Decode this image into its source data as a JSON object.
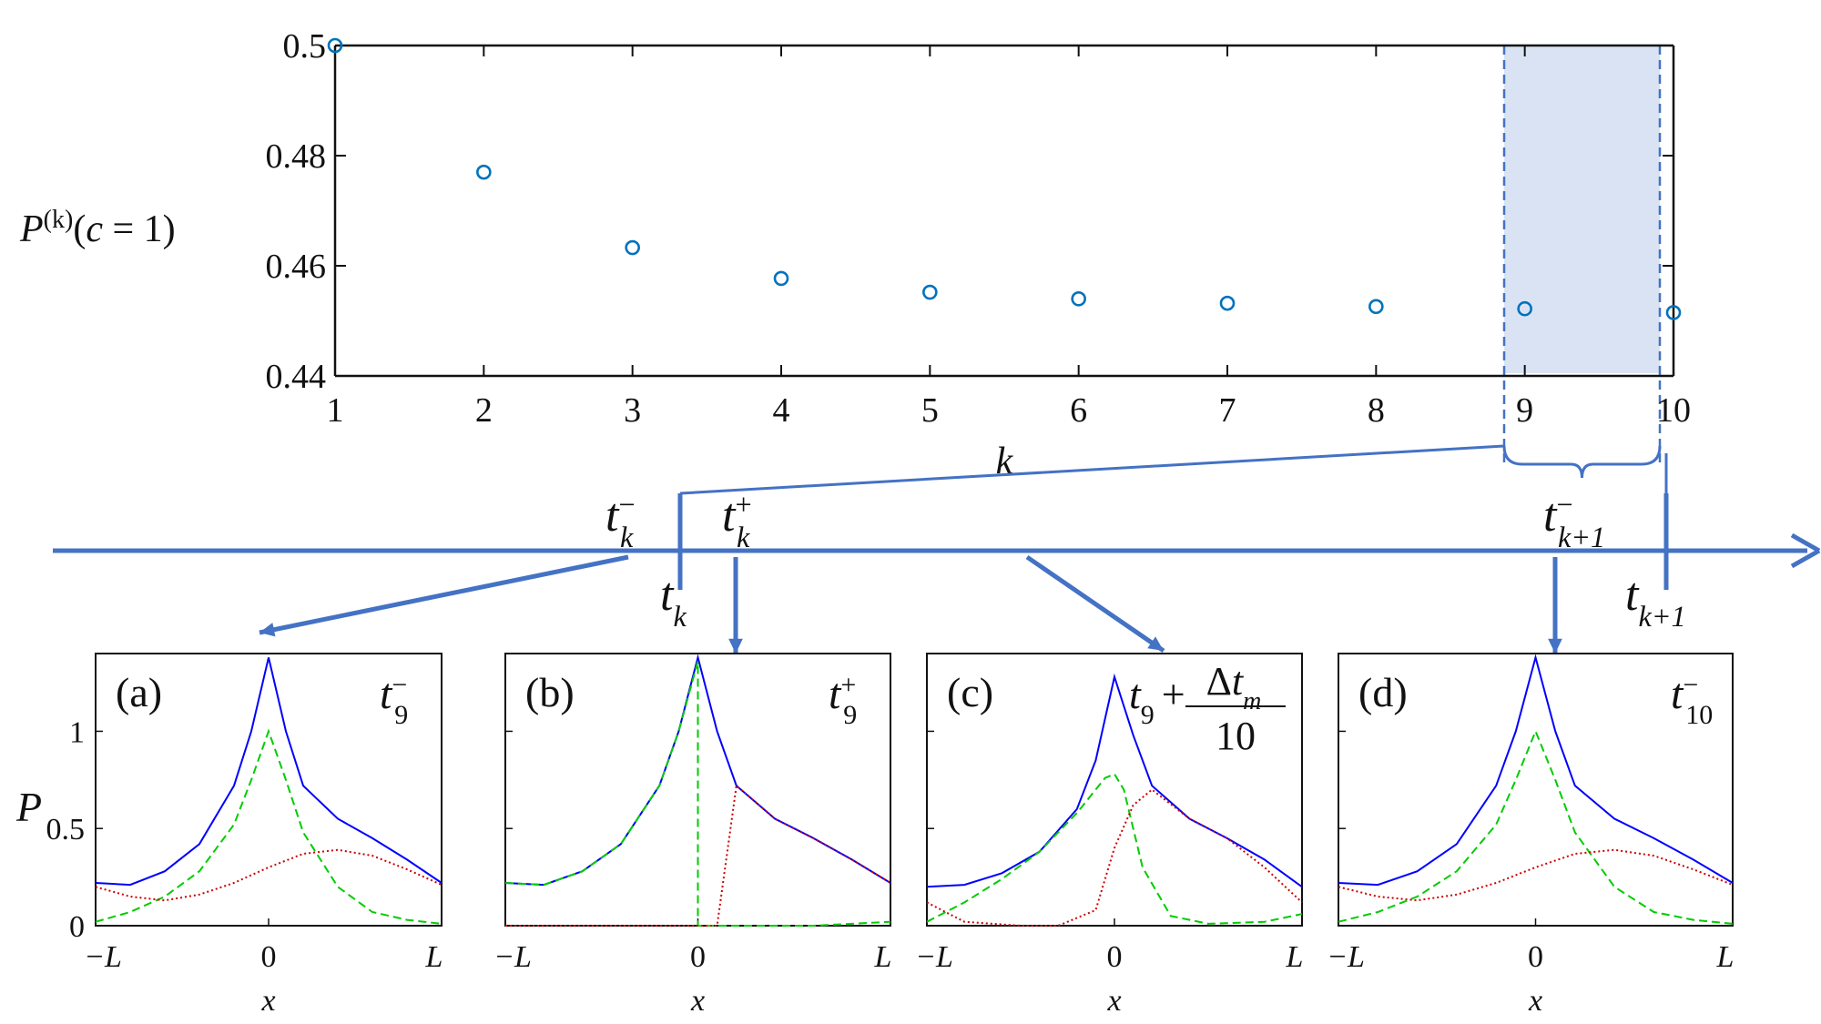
{
  "chart_data": [
    {
      "type": "scatter",
      "panel": "main",
      "xlabel": "k",
      "ylabel": "P(k)(c = 1)",
      "xlim": [
        1,
        10
      ],
      "ylim": [
        0.44,
        0.5
      ],
      "xticks": [
        "1",
        "2",
        "3",
        "4",
        "5",
        "6",
        "7",
        "8",
        "9",
        "10"
      ],
      "yticks": [
        "0.44",
        "0.46",
        "0.48",
        "0.5"
      ],
      "x": [
        1,
        2,
        3,
        4,
        5,
        6,
        7,
        8,
        9,
        10
      ],
      "y": [
        0.5,
        0.477,
        0.4633,
        0.4577,
        0.4552,
        0.454,
        0.4532,
        0.4526,
        0.4522,
        0.4515
      ],
      "marker_color": "#0072bd",
      "highlight_range": [
        9,
        10
      ],
      "highlight_color": "#dae3f3"
    },
    {
      "type": "timeline",
      "panel": "timeline",
      "labels": {
        "tk_minus": "t",
        "tk_minus_sub": "k",
        "tk_minus_sup": "−",
        "tk_plus": "t",
        "tk_plus_sub": "k",
        "tk_plus_sup": "+",
        "tk1_minus": "t",
        "tk1_minus_sub": "k+1",
        "tk1_minus_sup": "−",
        "tk": "t",
        "tk_sub": "k",
        "tk1": "t",
        "tk1_sub": "k+1"
      },
      "color": "#4472c4"
    },
    {
      "type": "line",
      "panel": "(a)",
      "time_label": "t",
      "time_sub": "9",
      "time_sup": "−",
      "ylabel": "P",
      "xlabel": "x",
      "xticks": [
        "−L",
        "0",
        "L"
      ],
      "yticks": [
        "0",
        "0.5",
        "1"
      ],
      "ylim": [
        0,
        1.4
      ],
      "series": [
        {
          "style": "solid",
          "color": "#0000ff",
          "x": [
            -1,
            -0.8,
            -0.6,
            -0.4,
            -0.2,
            -0.1,
            0,
            0.1,
            0.2,
            0.4,
            0.6,
            0.8,
            1
          ],
          "y": [
            0.22,
            0.21,
            0.28,
            0.42,
            0.72,
            1.0,
            1.38,
            1.0,
            0.72,
            0.55,
            0.45,
            0.34,
            0.22
          ]
        },
        {
          "style": "dashed",
          "color": "#00cc00",
          "x": [
            -1,
            -0.8,
            -0.6,
            -0.4,
            -0.2,
            -0.1,
            0,
            0.1,
            0.2,
            0.4,
            0.6,
            0.8,
            1
          ],
          "y": [
            0.02,
            0.07,
            0.15,
            0.28,
            0.52,
            0.75,
            1.0,
            0.75,
            0.48,
            0.2,
            0.07,
            0.03,
            0.01
          ]
        },
        {
          "style": "dotted",
          "color": "#cc0000",
          "x": [
            -1,
            -0.8,
            -0.6,
            -0.4,
            -0.2,
            0,
            0.2,
            0.4,
            0.6,
            0.8,
            1
          ],
          "y": [
            0.2,
            0.15,
            0.13,
            0.16,
            0.22,
            0.3,
            0.37,
            0.39,
            0.36,
            0.29,
            0.21
          ]
        }
      ]
    },
    {
      "type": "line",
      "panel": "(b)",
      "time_label": "t",
      "time_sub": "9",
      "time_sup": "+",
      "xticks": [
        "−L",
        "0",
        "L"
      ],
      "xlabel": "x",
      "ylim": [
        0,
        1.4
      ],
      "series": [
        {
          "style": "solid",
          "color": "#0000ff",
          "x": [
            -1,
            -0.8,
            -0.6,
            -0.4,
            -0.2,
            -0.1,
            0,
            0.1,
            0.2,
            0.4,
            0.6,
            0.8,
            1
          ],
          "y": [
            0.22,
            0.21,
            0.28,
            0.42,
            0.72,
            1.0,
            1.38,
            1.0,
            0.72,
            0.55,
            0.45,
            0.34,
            0.22
          ]
        },
        {
          "style": "dashed",
          "color": "#00cc00",
          "x": [
            -1,
            -0.8,
            -0.6,
            -0.4,
            -0.2,
            -0.1,
            0,
            0,
            0.3,
            0.6,
            1
          ],
          "y": [
            0.22,
            0.21,
            0.28,
            0.42,
            0.72,
            1.0,
            1.36,
            0,
            0,
            0,
            0.02
          ]
        },
        {
          "style": "dotted",
          "color": "#cc0000",
          "x": [
            -1,
            0,
            0,
            0.1,
            0.2,
            0.4,
            0.6,
            0.8,
            1
          ],
          "y": [
            0,
            0,
            0,
            0,
            0.72,
            0.55,
            0.45,
            0.34,
            0.22
          ]
        }
      ]
    },
    {
      "type": "line",
      "panel": "(c)",
      "time_label": "t",
      "time_sub": "9",
      "time_plus": "+",
      "time_frac_num": "Δt",
      "time_frac_num_sub": "m",
      "time_frac_den": "10",
      "xticks": [
        "−L",
        "0",
        "L"
      ],
      "xlabel": "x",
      "ylim": [
        0,
        1.4
      ],
      "series": [
        {
          "style": "solid",
          "color": "#0000ff",
          "x": [
            -1,
            -0.8,
            -0.6,
            -0.4,
            -0.2,
            -0.1,
            0,
            0.1,
            0.2,
            0.4,
            0.6,
            0.8,
            1
          ],
          "y": [
            0.2,
            0.21,
            0.27,
            0.38,
            0.6,
            0.85,
            1.28,
            0.98,
            0.72,
            0.55,
            0.45,
            0.34,
            0.2
          ]
        },
        {
          "style": "dashed",
          "color": "#00cc00",
          "x": [
            -1,
            -0.8,
            -0.6,
            -0.4,
            -0.2,
            -0.05,
            0,
            0.05,
            0.15,
            0.3,
            0.5,
            0.8,
            1
          ],
          "y": [
            0.02,
            0.12,
            0.24,
            0.38,
            0.58,
            0.76,
            0.78,
            0.7,
            0.3,
            0.05,
            0.01,
            0.02,
            0.06
          ]
        },
        {
          "style": "dotted",
          "color": "#cc0000",
          "x": [
            -1,
            -0.8,
            -0.5,
            -0.3,
            -0.1,
            0,
            0.1,
            0.2,
            0.4,
            0.6,
            0.8,
            1
          ],
          "y": [
            0.12,
            0.02,
            0,
            0,
            0.08,
            0.4,
            0.62,
            0.7,
            0.55,
            0.45,
            0.3,
            0.12
          ]
        }
      ]
    },
    {
      "type": "line",
      "panel": "(d)",
      "time_label": "t",
      "time_sub": "10",
      "time_sup": "−",
      "xticks": [
        "−L",
        "0",
        "L"
      ],
      "xlabel": "x",
      "ylim": [
        0,
        1.4
      ],
      "series": [
        {
          "style": "solid",
          "color": "#0000ff",
          "x": [
            -1,
            -0.8,
            -0.6,
            -0.4,
            -0.2,
            -0.1,
            0,
            0.1,
            0.2,
            0.4,
            0.6,
            0.8,
            1
          ],
          "y": [
            0.22,
            0.21,
            0.28,
            0.42,
            0.72,
            1.0,
            1.38,
            1.0,
            0.72,
            0.55,
            0.45,
            0.34,
            0.22
          ]
        },
        {
          "style": "dashed",
          "color": "#00cc00",
          "x": [
            -1,
            -0.8,
            -0.6,
            -0.4,
            -0.2,
            -0.1,
            0,
            0.1,
            0.2,
            0.4,
            0.6,
            0.8,
            1
          ],
          "y": [
            0.02,
            0.07,
            0.15,
            0.28,
            0.52,
            0.75,
            1.0,
            0.75,
            0.48,
            0.2,
            0.07,
            0.03,
            0.01
          ]
        },
        {
          "style": "dotted",
          "color": "#cc0000",
          "x": [
            -1,
            -0.8,
            -0.6,
            -0.4,
            -0.2,
            0,
            0.2,
            0.4,
            0.6,
            0.8,
            1
          ],
          "y": [
            0.2,
            0.15,
            0.13,
            0.16,
            0.22,
            0.3,
            0.37,
            0.39,
            0.36,
            0.29,
            0.21
          ]
        }
      ]
    }
  ]
}
